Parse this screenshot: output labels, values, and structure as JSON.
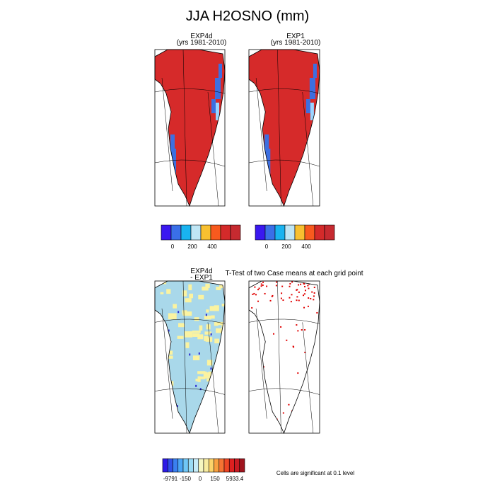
{
  "title": "JJA H2OSNO (mm)",
  "panels": [
    {
      "title": "EXP4d",
      "subtitle": "(yrs 1981-2010)"
    },
    {
      "title": "EXP1",
      "subtitle": "(yrs 1981-2010)"
    },
    {
      "title": "EXP4d",
      "subtitle": "- EXP1"
    },
    {
      "title": "T-Test of two Case means at each grid point"
    }
  ],
  "colorbars": [
    {
      "labels": [
        "0",
        "200",
        "400"
      ]
    },
    {
      "labels": [
        "0",
        "200",
        "400"
      ]
    },
    {
      "labels": [
        "-9791",
        "-150",
        "0",
        "150",
        "5933.4"
      ]
    }
  ],
  "note": "Cells are significant at 0.1 level"
}
